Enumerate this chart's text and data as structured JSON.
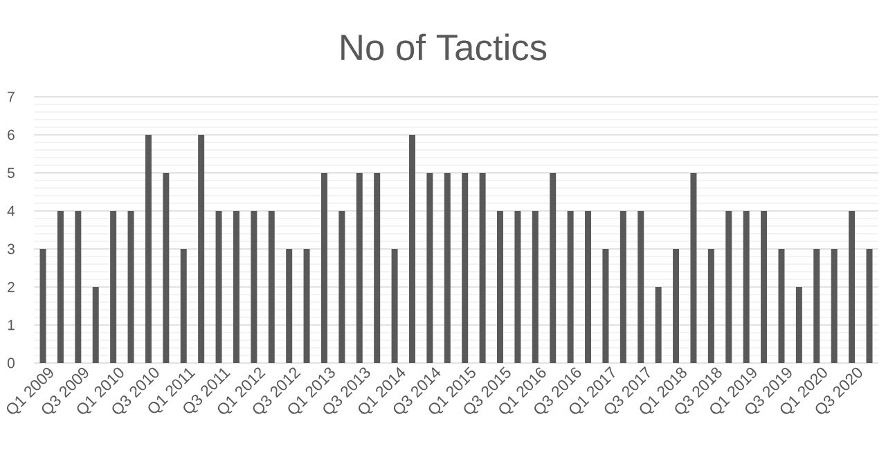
{
  "chart_data": {
    "type": "bar",
    "title": "No of Tactics",
    "categories": [
      "Q1 2009",
      null,
      "Q3 2009",
      null,
      "Q1 2010",
      null,
      "Q3 2010",
      null,
      "Q1 2011",
      null,
      "Q3 2011",
      null,
      "Q1 2012",
      null,
      "Q3 2012",
      null,
      "Q1 2013",
      null,
      "Q3 2013",
      null,
      "Q1 2014",
      null,
      "Q3 2014",
      null,
      "Q1 2015",
      null,
      "Q3 2015",
      null,
      "Q1 2016",
      null,
      "Q3 2016",
      null,
      "Q1 2017",
      null,
      "Q3 2017",
      null,
      "Q1 2018",
      null,
      "Q3 2018",
      null,
      "Q1 2019",
      null,
      "Q3 2019",
      null,
      "Q1 2020",
      null,
      "Q3 2020",
      null
    ],
    "values": [
      3,
      4,
      4,
      2,
      4,
      4,
      6,
      5,
      3,
      6,
      4,
      4,
      4,
      4,
      3,
      3,
      5,
      4,
      5,
      5,
      3,
      6,
      5,
      5,
      5,
      5,
      4,
      4,
      4,
      5,
      4,
      4,
      3,
      4,
      4,
      2,
      3,
      5,
      3,
      4,
      4,
      4,
      3,
      2,
      3,
      3,
      4,
      3
    ],
    "color": "#595959",
    "ylim": [
      0,
      7
    ],
    "yticks": [
      0,
      1,
      2,
      3,
      4,
      5,
      6,
      7
    ],
    "grid": "y"
  }
}
